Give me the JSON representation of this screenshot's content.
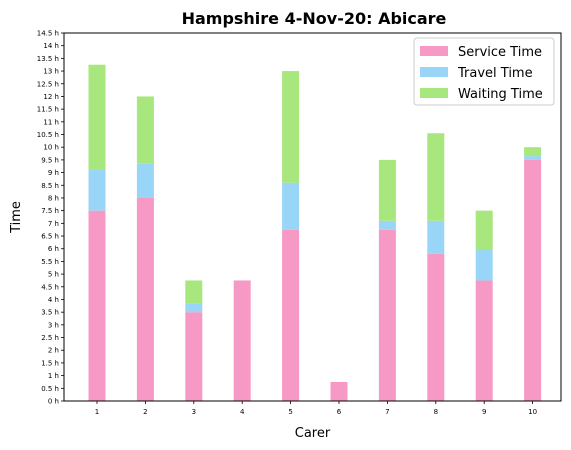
{
  "chart_data": {
    "type": "bar",
    "stacked": true,
    "title": "Hampshire 4-Nov-20: Abicare",
    "xlabel": "Carer",
    "ylabel": "Time",
    "categories": [
      "1",
      "2",
      "3",
      "4",
      "5",
      "6",
      "7",
      "8",
      "9",
      "10"
    ],
    "ylim": [
      0,
      14.5
    ],
    "ytick_step": 0.5,
    "ytick_suffix": " h",
    "legend_position": "top-right",
    "grid": false,
    "series": [
      {
        "name": "Service Time",
        "color": "#f799c5",
        "values": [
          7.5,
          8.0,
          3.5,
          4.75,
          6.75,
          0.75,
          6.75,
          5.8,
          4.75,
          9.5
        ]
      },
      {
        "name": "Travel Time",
        "color": "#99d5f7",
        "values": [
          1.6,
          1.35,
          0.35,
          0.0,
          1.85,
          0.0,
          0.35,
          1.3,
          1.2,
          0.15
        ]
      },
      {
        "name": "Waiting Time",
        "color": "#a8e67e",
        "values": [
          4.15,
          2.65,
          0.9,
          0.0,
          4.4,
          0.0,
          2.4,
          3.45,
          1.55,
          0.35
        ]
      }
    ]
  }
}
